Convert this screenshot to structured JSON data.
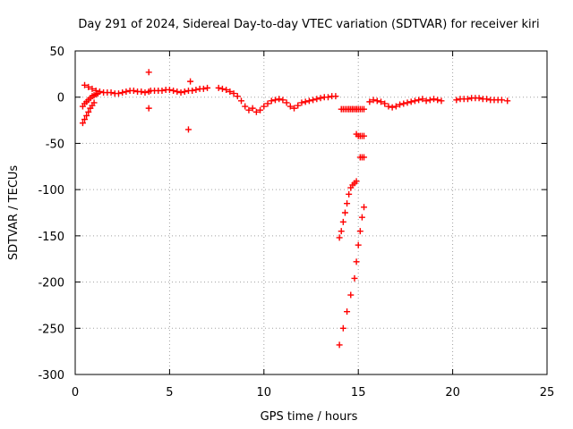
{
  "chart_data": {
    "type": "scatter",
    "title": "Day 291 of 2024, Sidereal Day-to-day VTEC variation (SDTVAR) for receiver kiri",
    "xlabel": "GPS time / hours",
    "ylabel": "SDTVAR / TECUs",
    "xlim": [
      0,
      25
    ],
    "ylim": [
      -300,
      50
    ],
    "xticks": [
      0,
      5,
      10,
      15,
      20,
      25
    ],
    "yticks": [
      -300,
      -250,
      -200,
      -150,
      -100,
      -50,
      0,
      50
    ],
    "grid": true,
    "marker": "plus",
    "color": "#ff0000",
    "x": [
      0.4,
      0.5,
      0.6,
      0.7,
      0.8,
      0.9,
      1.0,
      0.4,
      0.5,
      0.6,
      0.7,
      0.8,
      0.9,
      1.0,
      1.1,
      1.2,
      0.5,
      0.7,
      0.9,
      1.1,
      1.3,
      1.5,
      1.7,
      1.9,
      2.1,
      2.3,
      2.5,
      2.7,
      2.9,
      3.1,
      3.3,
      3.5,
      3.7,
      3.9,
      4.0,
      4.2,
      4.4,
      4.6,
      4.8,
      5.0,
      5.2,
      5.4,
      5.6,
      5.8,
      6.0,
      6.2,
      6.4,
      6.6,
      6.8,
      7.0,
      3.9,
      3.9,
      6.0,
      6.1,
      7.6,
      7.8,
      8.0,
      8.2,
      8.4,
      8.6,
      8.8,
      9.0,
      9.2,
      9.4,
      9.6,
      9.8,
      10.0,
      10.2,
      10.4,
      10.6,
      10.8,
      11.0,
      11.2,
      11.4,
      11.6,
      11.8,
      12.0,
      12.2,
      12.4,
      12.6,
      12.8,
      13.0,
      13.2,
      13.4,
      13.6,
      13.8,
      14.0,
      14.1,
      14.2,
      14.3,
      14.4,
      14.5,
      14.6,
      14.7,
      14.8,
      14.9,
      14.0,
      14.2,
      14.4,
      14.6,
      14.8,
      14.9,
      15.0,
      15.1,
      15.2,
      15.3,
      14.1,
      14.2,
      14.3,
      14.4,
      14.5,
      14.6,
      14.7,
      14.8,
      14.9,
      15.0,
      15.1,
      15.2,
      15.3,
      14.5,
      14.7,
      14.9,
      14.9,
      15.0,
      15.1,
      15.2,
      15.3,
      15.1,
      15.2,
      15.3,
      15.6,
      15.8,
      16.0,
      16.2,
      16.4,
      16.6,
      16.8,
      17.0,
      17.2,
      17.4,
      17.6,
      17.8,
      18.0,
      18.2,
      18.4,
      18.6,
      18.8,
      19.0,
      19.2,
      19.4,
      20.2,
      20.4,
      20.6,
      20.8,
      21.0,
      21.2,
      21.4,
      21.6,
      21.8,
      22.0,
      22.2,
      22.4,
      22.6,
      22.9
    ],
    "y": [
      -28,
      -24,
      -20,
      -16,
      -12,
      -9,
      -6,
      -10,
      -7,
      -5,
      -3,
      -1,
      1,
      2,
      3,
      4,
      13,
      11,
      9,
      7,
      6,
      5,
      5,
      5,
      4,
      4,
      5,
      6,
      7,
      7,
      6,
      6,
      5,
      6,
      7,
      7,
      7,
      7,
      8,
      8,
      7,
      6,
      5,
      6,
      7,
      7,
      8,
      9,
      9,
      10,
      27,
      -12,
      -35,
      17,
      10,
      9,
      8,
      6,
      4,
      1,
      -4,
      -10,
      -14,
      -12,
      -16,
      -14,
      -10,
      -7,
      -4,
      -3,
      -2,
      -3,
      -6,
      -10,
      -12,
      -9,
      -6,
      -5,
      -4,
      -3,
      -2,
      -1,
      0,
      0,
      1,
      1,
      -152,
      -145,
      -135,
      -125,
      -115,
      -105,
      -98,
      -95,
      -93,
      -91,
      -268,
      -250,
      -232,
      -214,
      -196,
      -178,
      -160,
      -145,
      -130,
      -119,
      -13,
      -13,
      -13,
      -13,
      -13,
      -13,
      -13,
      -13,
      -13,
      -13,
      -13,
      -13,
      -13,
      -13,
      -13,
      -13,
      -40,
      -42,
      -42,
      -42,
      -42,
      -65,
      -65,
      -65,
      -5,
      -3,
      -4,
      -5,
      -7,
      -10,
      -11,
      -10,
      -8,
      -7,
      -6,
      -5,
      -4,
      -3,
      -2,
      -4,
      -3,
      -2,
      -3,
      -4,
      -3,
      -2,
      -2,
      -2,
      -1,
      -1,
      -1,
      -2,
      -2,
      -3,
      -3,
      -3,
      -3,
      -4
    ]
  }
}
